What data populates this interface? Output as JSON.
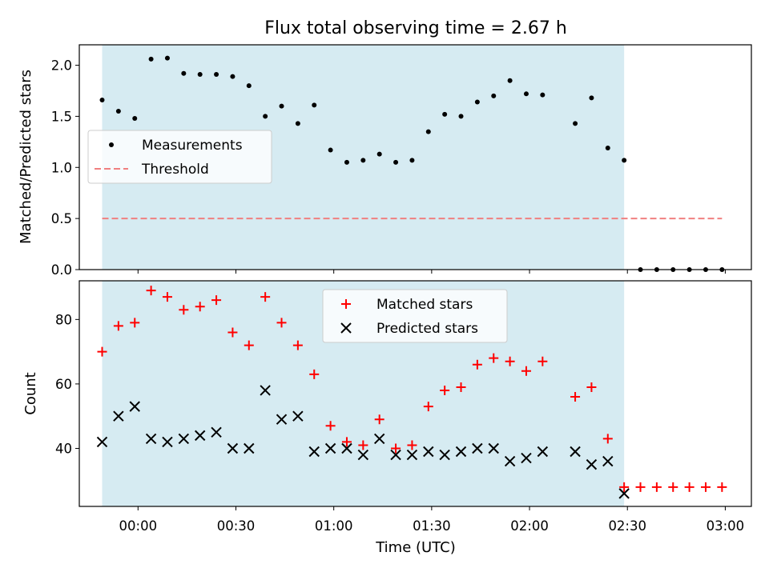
{
  "chart_data": {
    "title": "Flux total observing time = 2.67 h",
    "shaded_region": {
      "start": "23:49",
      "end": "02:29",
      "color": "#add8e6"
    },
    "x_axis": {
      "label": "Time (UTC)",
      "range": [
        "23:42",
        "03:08"
      ],
      "ticks": [
        "00:00",
        "00:30",
        "01:00",
        "01:30",
        "02:00",
        "02:30",
        "03:00"
      ]
    },
    "panels": [
      {
        "type": "scatter",
        "ylabel": "Matched/Predicted stars",
        "ylim": [
          0,
          2.2
        ],
        "yticks": [
          "0.0",
          "0.5",
          "1.0",
          "1.5",
          "2.0"
        ],
        "legend": {
          "position": "center-left",
          "entries": [
            "Measurements",
            "Threshold"
          ]
        },
        "series": [
          {
            "name": "Measurements",
            "marker": "dot",
            "color": "#000000",
            "x": [
              "23:49",
              "23:54",
              "23:59",
              "00:04",
              "00:09",
              "00:14",
              "00:19",
              "00:24",
              "00:29",
              "00:34",
              "00:39",
              "00:44",
              "00:49",
              "00:54",
              "00:59",
              "01:04",
              "01:09",
              "01:14",
              "01:19",
              "01:24",
              "01:29",
              "01:34",
              "01:39",
              "01:44",
              "01:49",
              "01:54",
              "01:59",
              "02:04",
              "02:14",
              "02:19",
              "02:24",
              "02:29",
              "02:34",
              "02:39",
              "02:44",
              "02:49",
              "02:54",
              "02:59"
            ],
            "y": [
              1.66,
              1.55,
              1.48,
              2.06,
              2.07,
              1.92,
              1.91,
              1.91,
              1.89,
              1.8,
              1.5,
              1.6,
              1.43,
              1.61,
              1.17,
              1.05,
              1.07,
              1.13,
              1.05,
              1.07,
              1.35,
              1.52,
              1.5,
              1.64,
              1.7,
              1.85,
              1.72,
              1.71,
              1.43,
              1.68,
              1.19,
              1.07,
              0,
              0,
              0,
              0,
              0,
              0
            ]
          },
          {
            "name": "Threshold",
            "style": "dashed",
            "color": "#f08080",
            "x": [
              "23:49",
              "02:59"
            ],
            "y": [
              0.5,
              0.5
            ]
          }
        ]
      },
      {
        "type": "scatter",
        "ylabel": "Count",
        "ylim": [
          22,
          92
        ],
        "yticks": [
          "40",
          "60",
          "80"
        ],
        "legend": {
          "position": "top-center",
          "entries": [
            "Matched stars",
            "Predicted stars"
          ]
        },
        "series": [
          {
            "name": "Matched stars",
            "marker": "plus",
            "color": "#ff0000",
            "x": [
              "23:49",
              "23:54",
              "23:59",
              "00:04",
              "00:09",
              "00:14",
              "00:19",
              "00:24",
              "00:29",
              "00:34",
              "00:39",
              "00:44",
              "00:49",
              "00:54",
              "00:59",
              "01:04",
              "01:09",
              "01:14",
              "01:19",
              "01:24",
              "01:29",
              "01:34",
              "01:39",
              "01:44",
              "01:49",
              "01:54",
              "01:59",
              "02:04",
              "02:14",
              "02:19",
              "02:24",
              "02:29",
              "02:34",
              "02:39",
              "02:44",
              "02:49",
              "02:54",
              "02:59"
            ],
            "y": [
              70,
              78,
              79,
              89,
              87,
              83,
              84,
              86,
              76,
              72,
              87,
              79,
              72,
              63,
              47,
              42,
              41,
              49,
              40,
              41,
              53,
              58,
              59,
              66,
              68,
              67,
              64,
              67,
              56,
              59,
              43,
              28,
              28,
              28,
              28,
              28,
              28,
              28
            ]
          },
          {
            "name": "Predicted stars",
            "marker": "x",
            "color": "#000000",
            "x": [
              "23:49",
              "23:54",
              "23:59",
              "00:04",
              "00:09",
              "00:14",
              "00:19",
              "00:24",
              "00:29",
              "00:34",
              "00:39",
              "00:44",
              "00:49",
              "00:54",
              "00:59",
              "01:04",
              "01:09",
              "01:14",
              "01:19",
              "01:24",
              "01:29",
              "01:34",
              "01:39",
              "01:44",
              "01:49",
              "01:54",
              "01:59",
              "02:04",
              "02:14",
              "02:19",
              "02:24",
              "02:29"
            ],
            "y": [
              42,
              50,
              53,
              43,
              42,
              43,
              44,
              45,
              40,
              40,
              58,
              49,
              50,
              39,
              40,
              40,
              38,
              43,
              38,
              38,
              39,
              38,
              39,
              40,
              40,
              36,
              37,
              39,
              39,
              35,
              36,
              26
            ]
          }
        ]
      }
    ]
  }
}
